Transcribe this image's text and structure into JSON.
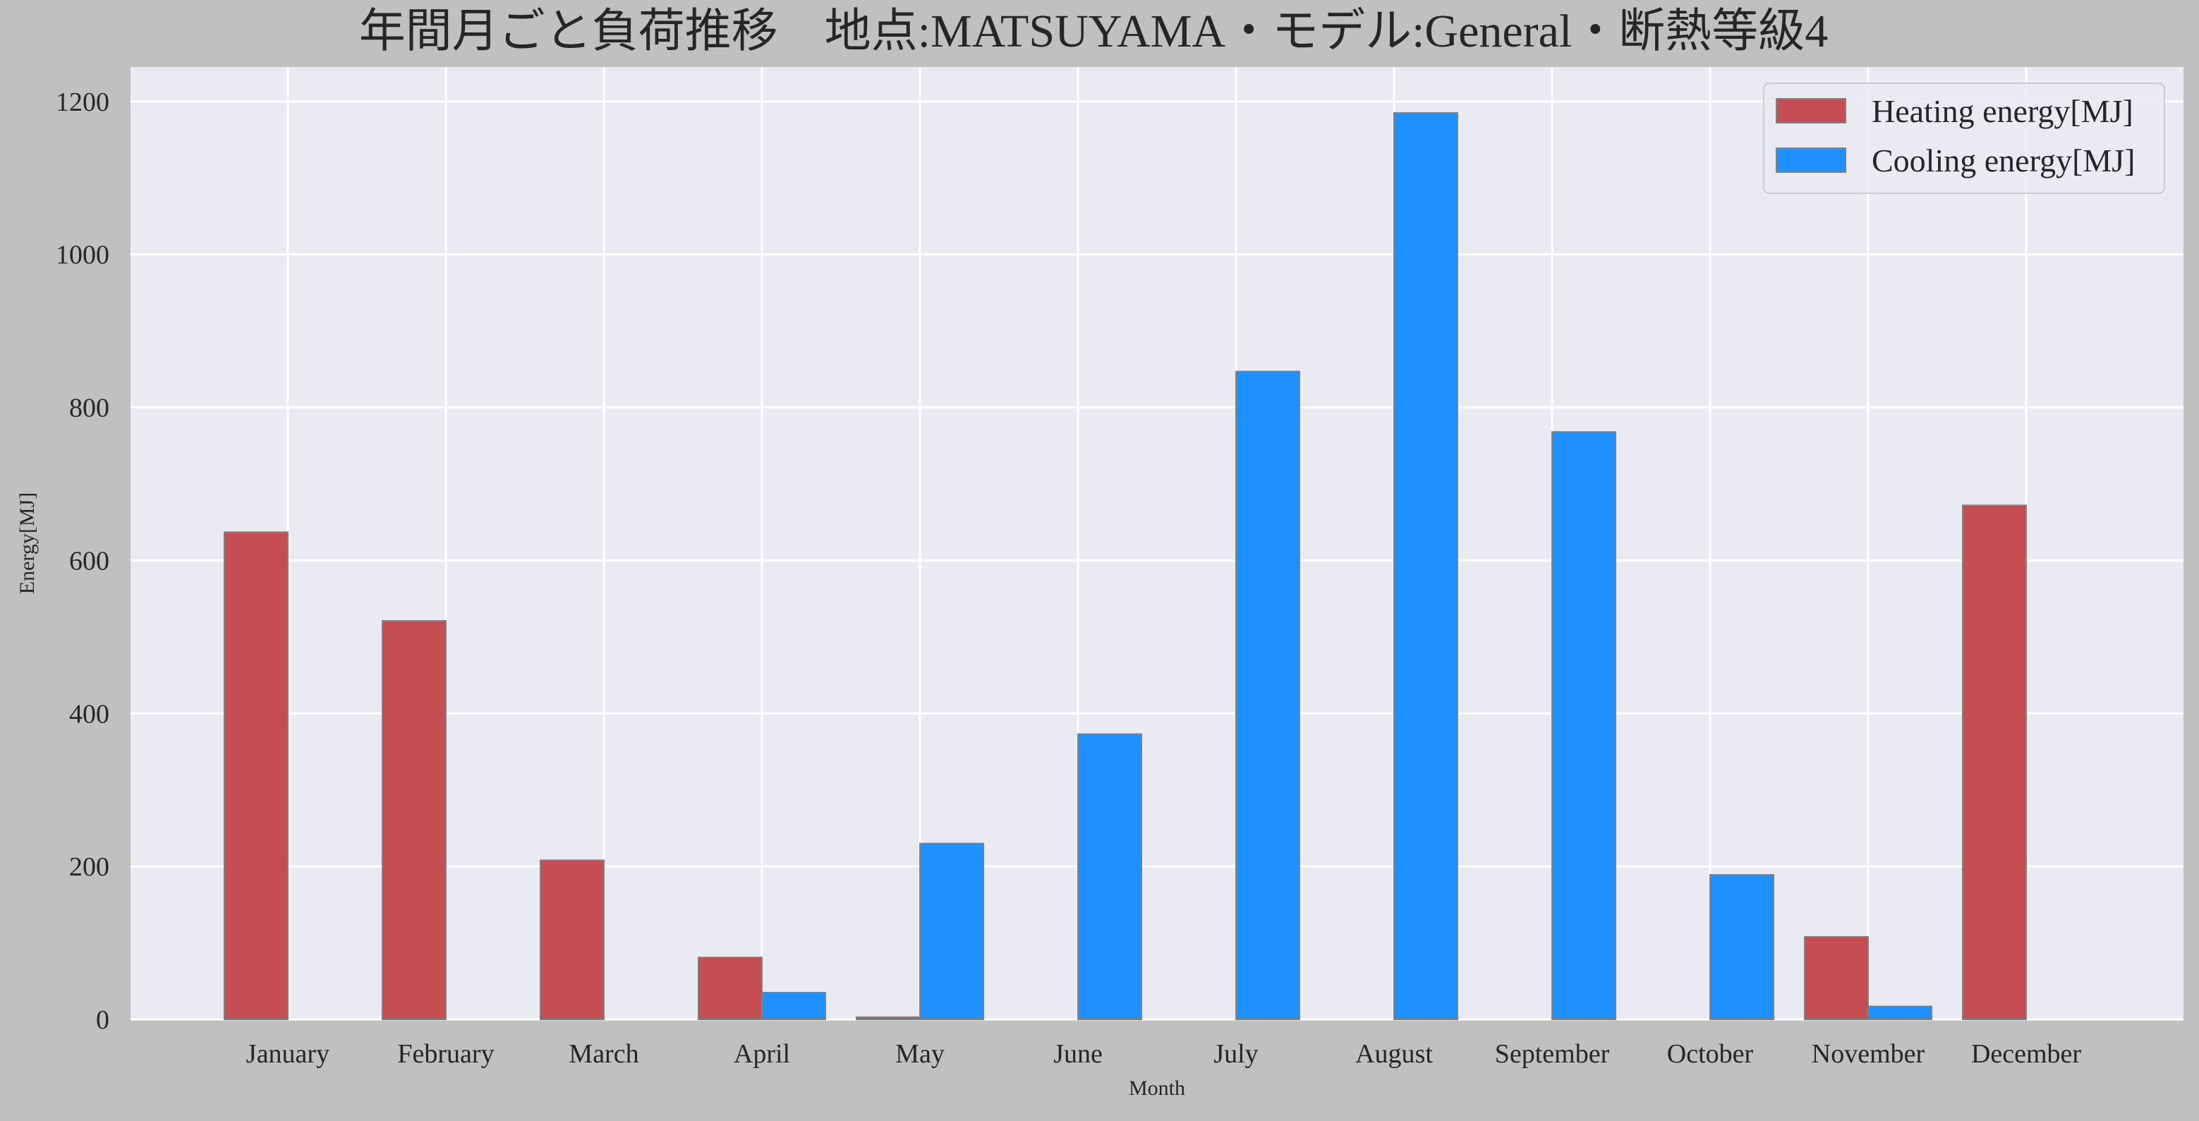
{
  "chart_data": {
    "type": "bar",
    "title": "年間月ごと負荷推移　地点:MATSUYAMA・モデル:General・断熱等級4",
    "xlabel": "Month",
    "ylabel": "Energy[MJ]",
    "categories": [
      "January",
      "February",
      "March",
      "April",
      "May",
      "June",
      "July",
      "August",
      "September",
      "October",
      "November",
      "December"
    ],
    "series": [
      {
        "name": "Heating energy[MJ]",
        "color": "#c44e52",
        "values": [
          637,
          521,
          208,
          81,
          3,
          0,
          0,
          0,
          0,
          0,
          108,
          672
        ]
      },
      {
        "name": "Cooling energy[MJ]",
        "color": "#1e90ff",
        "values": [
          0,
          0,
          0,
          35,
          230,
          373,
          847,
          1185,
          768,
          189,
          17,
          0
        ]
      }
    ],
    "ylim": [
      0,
      1245
    ],
    "yticks": [
      0,
      200,
      400,
      600,
      800,
      1000,
      1200
    ],
    "grid": true,
    "legend_position": "top-right",
    "background": "#eaeaf2",
    "figure_background": "#c0c0c0"
  }
}
